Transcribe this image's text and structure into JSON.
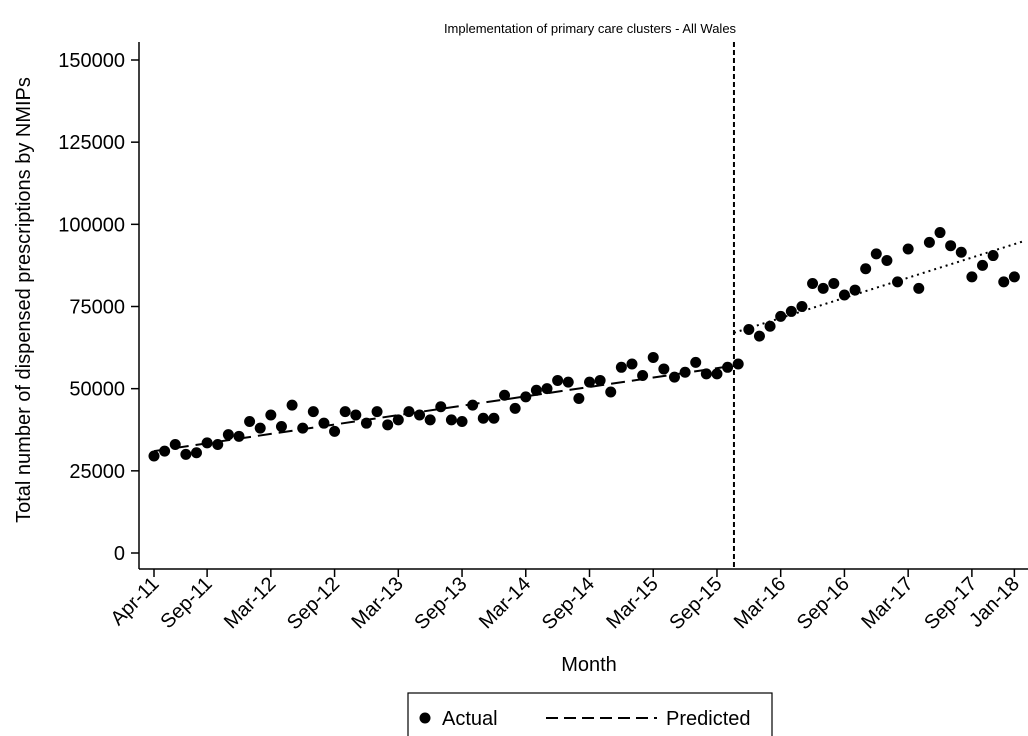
{
  "chart_data": {
    "type": "scatter",
    "title": "Implementation of primary care clusters - All Wales",
    "xlabel": "Month",
    "ylabel": "Total number of dispensed prescriptions by NMIPs",
    "ylim": [
      -8000,
      155000
    ],
    "yticks": [
      0,
      25000,
      50000,
      75000,
      100000,
      125000,
      150000
    ],
    "xlim": [
      0,
      82
    ],
    "xticks": [
      {
        "index": 0,
        "label": "Apr-11"
      },
      {
        "index": 5,
        "label": "Sep-11"
      },
      {
        "index": 11,
        "label": "Mar-12"
      },
      {
        "index": 17,
        "label": "Sep-12"
      },
      {
        "index": 23,
        "label": "Mar-13"
      },
      {
        "index": 29,
        "label": "Sep-13"
      },
      {
        "index": 35,
        "label": "Mar-14"
      },
      {
        "index": 41,
        "label": "Sep-14"
      },
      {
        "index": 47,
        "label": "Mar-15"
      },
      {
        "index": 53,
        "label": "Sep-15"
      },
      {
        "index": 59,
        "label": "Mar-16"
      },
      {
        "index": 65,
        "label": "Sep-16"
      },
      {
        "index": 71,
        "label": "Mar-17"
      },
      {
        "index": 77,
        "label": "Sep-17"
      },
      {
        "index": 81,
        "label": "Jan-18"
      }
    ],
    "intervention_index": 54.6,
    "grid": false,
    "legend_position": "bottom",
    "series": [
      {
        "name": "Actual",
        "kind": "points",
        "values": [
          29500,
          31000,
          33000,
          30000,
          30500,
          33500,
          33000,
          36000,
          35500,
          40000,
          38000,
          42000,
          38500,
          45000,
          38000,
          43000,
          39500,
          37000,
          43000,
          42000,
          39500,
          43000,
          39000,
          40500,
          43000,
          42000,
          40500,
          44500,
          40500,
          40000,
          45000,
          41000,
          41000,
          48000,
          44000,
          47500,
          49500,
          50000,
          52500,
          52000,
          47000,
          52000,
          52500,
          49000,
          56500,
          57500,
          54000,
          59500,
          56000,
          53500,
          55000,
          58000,
          54500,
          54500,
          56500,
          57500,
          68000,
          66000,
          69000,
          72000,
          73500,
          75000,
          82000,
          80500,
          82000,
          78500,
          80000,
          86500,
          91000,
          89000,
          82500,
          92500,
          80500,
          94500,
          97500,
          93500,
          91500,
          84000,
          87500,
          90500,
          82500,
          84000
        ]
      },
      {
        "name": "Predicted",
        "kind": "dashed-line",
        "points": [
          [
            0,
            31000
          ],
          [
            54.6,
            57000
          ]
        ]
      },
      {
        "name": "",
        "kind": "dotted-line",
        "points": [
          [
            54.6,
            67000
          ],
          [
            82,
            95000
          ]
        ]
      }
    ]
  }
}
